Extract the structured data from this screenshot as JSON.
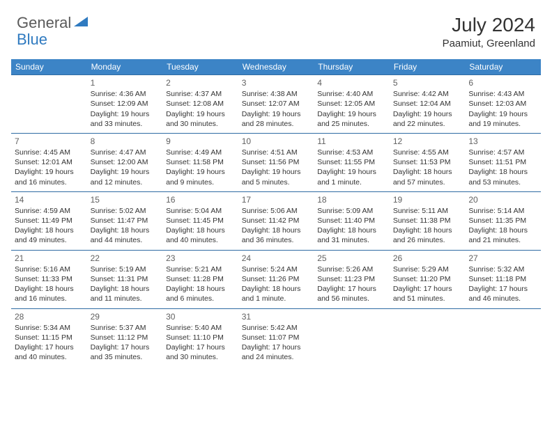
{
  "brand": {
    "part1": "General",
    "part2": "Blue"
  },
  "title": "July 2024",
  "location": "Paamiut, Greenland",
  "colors": {
    "header_bg": "#3c84c6",
    "header_text": "#ffffff",
    "row_border": "#2e6ba3",
    "body_text": "#333333",
    "brand_gray": "#5a5a5a",
    "brand_blue": "#2f7ac0"
  },
  "day_headers": [
    "Sunday",
    "Monday",
    "Tuesday",
    "Wednesday",
    "Thursday",
    "Friday",
    "Saturday"
  ],
  "weeks": [
    [
      null,
      {
        "n": "1",
        "sr": "Sunrise: 4:36 AM",
        "ss": "Sunset: 12:09 AM",
        "dl": "Daylight: 19 hours and 33 minutes."
      },
      {
        "n": "2",
        "sr": "Sunrise: 4:37 AM",
        "ss": "Sunset: 12:08 AM",
        "dl": "Daylight: 19 hours and 30 minutes."
      },
      {
        "n": "3",
        "sr": "Sunrise: 4:38 AM",
        "ss": "Sunset: 12:07 AM",
        "dl": "Daylight: 19 hours and 28 minutes."
      },
      {
        "n": "4",
        "sr": "Sunrise: 4:40 AM",
        "ss": "Sunset: 12:05 AM",
        "dl": "Daylight: 19 hours and 25 minutes."
      },
      {
        "n": "5",
        "sr": "Sunrise: 4:42 AM",
        "ss": "Sunset: 12:04 AM",
        "dl": "Daylight: 19 hours and 22 minutes."
      },
      {
        "n": "6",
        "sr": "Sunrise: 4:43 AM",
        "ss": "Sunset: 12:03 AM",
        "dl": "Daylight: 19 hours and 19 minutes."
      }
    ],
    [
      {
        "n": "7",
        "sr": "Sunrise: 4:45 AM",
        "ss": "Sunset: 12:01 AM",
        "dl": "Daylight: 19 hours and 16 minutes."
      },
      {
        "n": "8",
        "sr": "Sunrise: 4:47 AM",
        "ss": "Sunset: 12:00 AM",
        "dl": "Daylight: 19 hours and 12 minutes."
      },
      {
        "n": "9",
        "sr": "Sunrise: 4:49 AM",
        "ss": "Sunset: 11:58 PM",
        "dl": "Daylight: 19 hours and 9 minutes."
      },
      {
        "n": "10",
        "sr": "Sunrise: 4:51 AM",
        "ss": "Sunset: 11:56 PM",
        "dl": "Daylight: 19 hours and 5 minutes."
      },
      {
        "n": "11",
        "sr": "Sunrise: 4:53 AM",
        "ss": "Sunset: 11:55 PM",
        "dl": "Daylight: 19 hours and 1 minute."
      },
      {
        "n": "12",
        "sr": "Sunrise: 4:55 AM",
        "ss": "Sunset: 11:53 PM",
        "dl": "Daylight: 18 hours and 57 minutes."
      },
      {
        "n": "13",
        "sr": "Sunrise: 4:57 AM",
        "ss": "Sunset: 11:51 PM",
        "dl": "Daylight: 18 hours and 53 minutes."
      }
    ],
    [
      {
        "n": "14",
        "sr": "Sunrise: 4:59 AM",
        "ss": "Sunset: 11:49 PM",
        "dl": "Daylight: 18 hours and 49 minutes."
      },
      {
        "n": "15",
        "sr": "Sunrise: 5:02 AM",
        "ss": "Sunset: 11:47 PM",
        "dl": "Daylight: 18 hours and 44 minutes."
      },
      {
        "n": "16",
        "sr": "Sunrise: 5:04 AM",
        "ss": "Sunset: 11:45 PM",
        "dl": "Daylight: 18 hours and 40 minutes."
      },
      {
        "n": "17",
        "sr": "Sunrise: 5:06 AM",
        "ss": "Sunset: 11:42 PM",
        "dl": "Daylight: 18 hours and 36 minutes."
      },
      {
        "n": "18",
        "sr": "Sunrise: 5:09 AM",
        "ss": "Sunset: 11:40 PM",
        "dl": "Daylight: 18 hours and 31 minutes."
      },
      {
        "n": "19",
        "sr": "Sunrise: 5:11 AM",
        "ss": "Sunset: 11:38 PM",
        "dl": "Daylight: 18 hours and 26 minutes."
      },
      {
        "n": "20",
        "sr": "Sunrise: 5:14 AM",
        "ss": "Sunset: 11:35 PM",
        "dl": "Daylight: 18 hours and 21 minutes."
      }
    ],
    [
      {
        "n": "21",
        "sr": "Sunrise: 5:16 AM",
        "ss": "Sunset: 11:33 PM",
        "dl": "Daylight: 18 hours and 16 minutes."
      },
      {
        "n": "22",
        "sr": "Sunrise: 5:19 AM",
        "ss": "Sunset: 11:31 PM",
        "dl": "Daylight: 18 hours and 11 minutes."
      },
      {
        "n": "23",
        "sr": "Sunrise: 5:21 AM",
        "ss": "Sunset: 11:28 PM",
        "dl": "Daylight: 18 hours and 6 minutes."
      },
      {
        "n": "24",
        "sr": "Sunrise: 5:24 AM",
        "ss": "Sunset: 11:26 PM",
        "dl": "Daylight: 18 hours and 1 minute."
      },
      {
        "n": "25",
        "sr": "Sunrise: 5:26 AM",
        "ss": "Sunset: 11:23 PM",
        "dl": "Daylight: 17 hours and 56 minutes."
      },
      {
        "n": "26",
        "sr": "Sunrise: 5:29 AM",
        "ss": "Sunset: 11:20 PM",
        "dl": "Daylight: 17 hours and 51 minutes."
      },
      {
        "n": "27",
        "sr": "Sunrise: 5:32 AM",
        "ss": "Sunset: 11:18 PM",
        "dl": "Daylight: 17 hours and 46 minutes."
      }
    ],
    [
      {
        "n": "28",
        "sr": "Sunrise: 5:34 AM",
        "ss": "Sunset: 11:15 PM",
        "dl": "Daylight: 17 hours and 40 minutes."
      },
      {
        "n": "29",
        "sr": "Sunrise: 5:37 AM",
        "ss": "Sunset: 11:12 PM",
        "dl": "Daylight: 17 hours and 35 minutes."
      },
      {
        "n": "30",
        "sr": "Sunrise: 5:40 AM",
        "ss": "Sunset: 11:10 PM",
        "dl": "Daylight: 17 hours and 30 minutes."
      },
      {
        "n": "31",
        "sr": "Sunrise: 5:42 AM",
        "ss": "Sunset: 11:07 PM",
        "dl": "Daylight: 17 hours and 24 minutes."
      },
      null,
      null,
      null
    ]
  ]
}
